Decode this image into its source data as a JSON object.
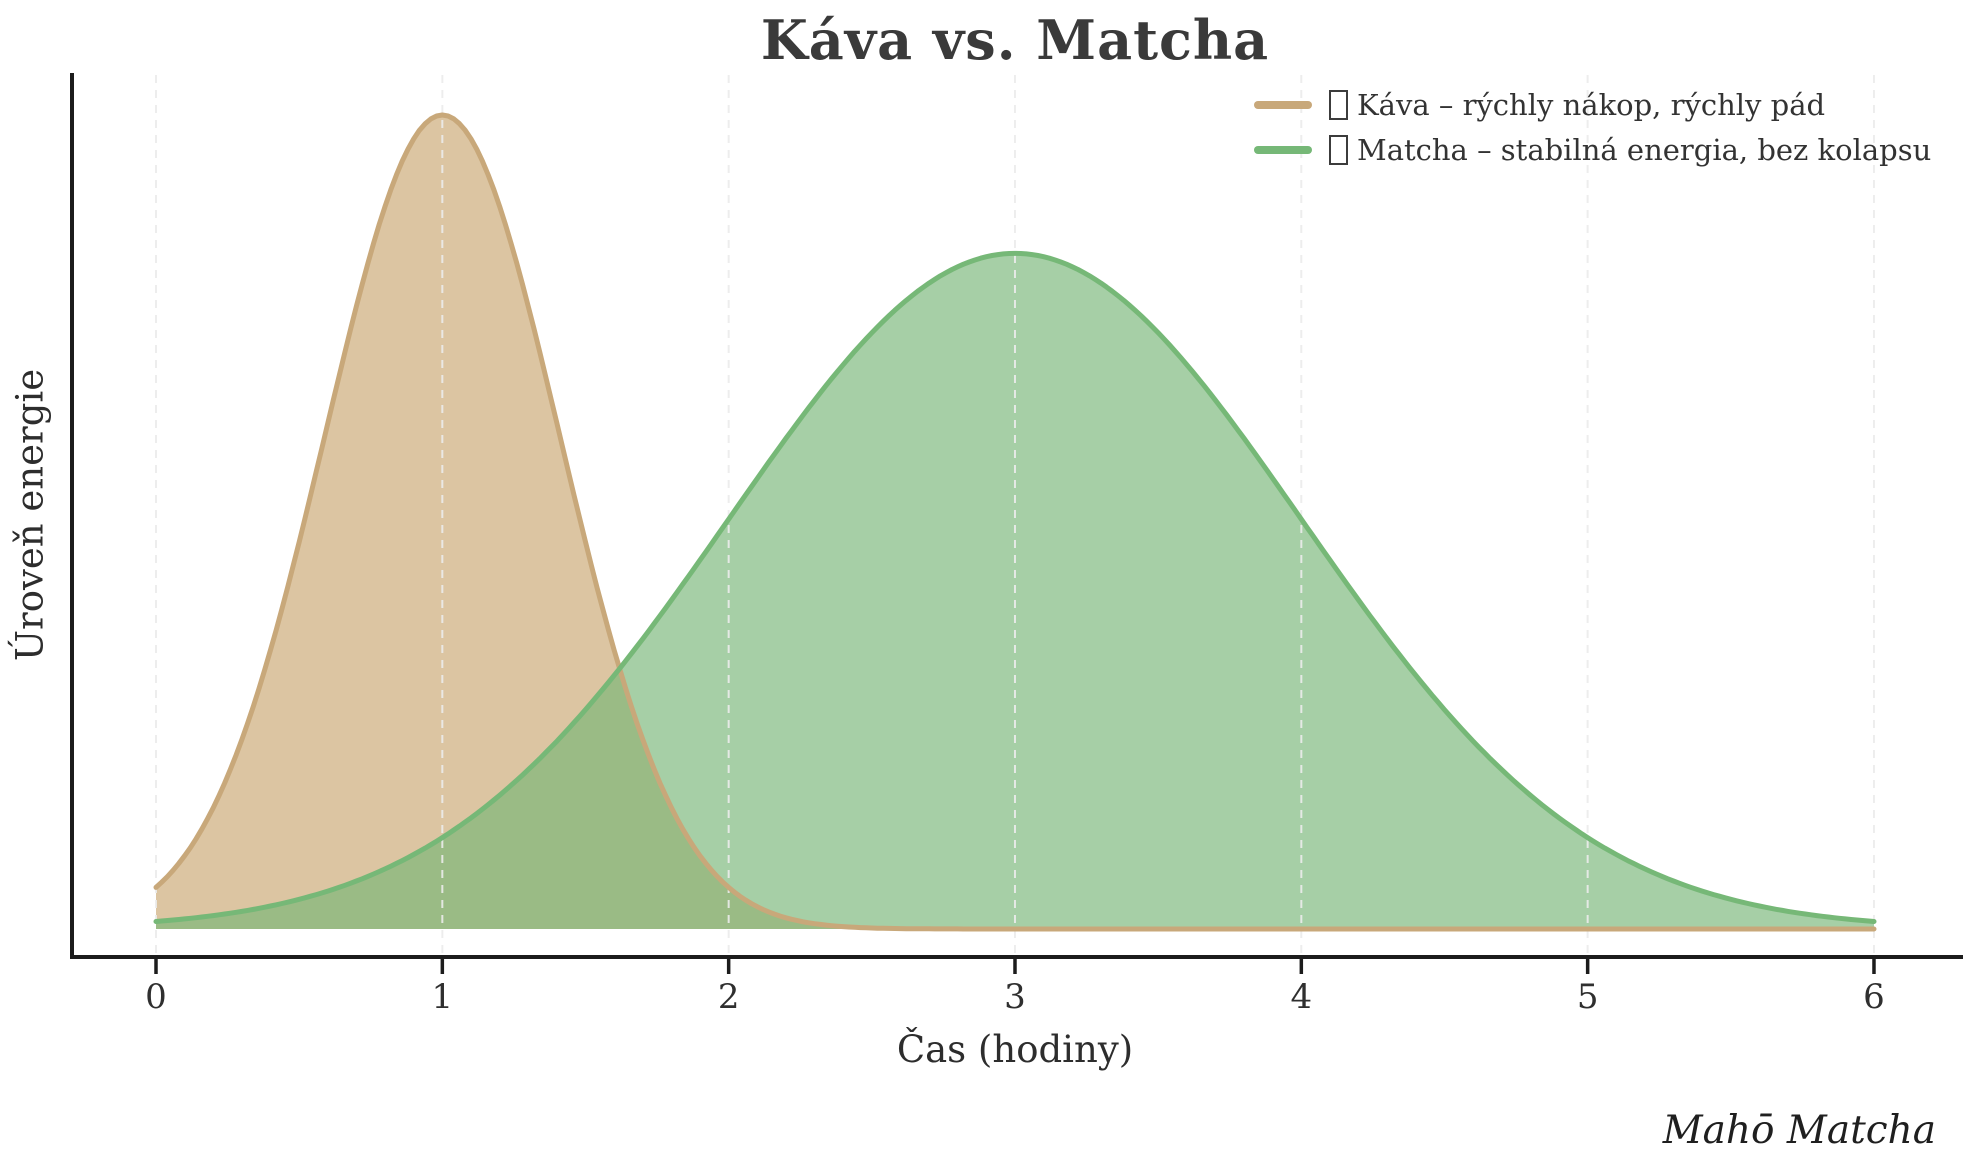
{
  "title": "Káva vs. Matcha",
  "watermark": "Mahō Matcha",
  "colors": {
    "coffee_line": "#C8A87A",
    "coffee_fill": "rgba(196,158,100,0.6)",
    "matcha_line": "#76B877",
    "matcha_fill": "rgba(118,182,118,0.65)",
    "spine": "#1c1c1c",
    "grid": "#ececec",
    "title_text": "#3a3a3a",
    "tick_text": "#2f2f2f"
  },
  "legend": {
    "items": [
      {
        "id": "kava",
        "label": "Káva – rýchly nákop, rýchly pád",
        "swatch_color": "#C8A87A",
        "missing_glyph_box": true
      },
      {
        "id": "matcha",
        "label": "Matcha – stabilná energia, bez kolapsu",
        "swatch_color": "#76B877",
        "missing_glyph_box": true
      }
    ],
    "position": "upper right",
    "frame": false
  },
  "chart_data": {
    "type": "area",
    "title": "Káva vs. Matcha",
    "xlabel": "Čas (hodiny)",
    "ylabel": "Úroveň energie",
    "xlim": [
      0,
      6
    ],
    "ylim": [
      0,
      1.1
    ],
    "x_ticks": [
      0,
      1,
      2,
      3,
      4,
      5,
      6
    ],
    "y_ticks": [],
    "grid": "vertical-dashed",
    "legend_position": "upper right",
    "series": [
      {
        "name": "Káva – rýchly nákop, rýchly pád",
        "color": "#C8A87A",
        "fill": "rgba(196,158,100,0.6)",
        "model": {
          "type": "gaussian",
          "mu": 1.0,
          "sigma": 0.41,
          "amplitude": 1.0
        },
        "samples_x": [
          0,
          0.25,
          0.5,
          0.75,
          1.0,
          1.25,
          1.5,
          1.75,
          2.0,
          2.25,
          2.5,
          3.0,
          4.0,
          5.0,
          6.0
        ],
        "samples_y": [
          0.051,
          0.189,
          0.475,
          0.831,
          1.0,
          0.831,
          0.475,
          0.189,
          0.051,
          0.0095,
          0.0012,
          0.0,
          0.0,
          0.0,
          0.0
        ]
      },
      {
        "name": "Matcha – stabilná energia, bez kolapsu",
        "color": "#76B877",
        "fill": "rgba(118,182,118,0.65)",
        "model": {
          "type": "gaussian",
          "mu": 3.0,
          "sigma": 1.0,
          "amplitude": 0.83
        },
        "samples_x": [
          0,
          0.5,
          1.0,
          1.5,
          2.0,
          2.5,
          3.0,
          3.5,
          4.0,
          4.5,
          5.0,
          5.5,
          6.0
        ],
        "samples_y": [
          0.0092,
          0.0365,
          0.1123,
          0.2697,
          0.5034,
          0.7325,
          0.83,
          0.7325,
          0.5034,
          0.2697,
          0.1123,
          0.0365,
          0.0092
        ]
      }
    ]
  }
}
